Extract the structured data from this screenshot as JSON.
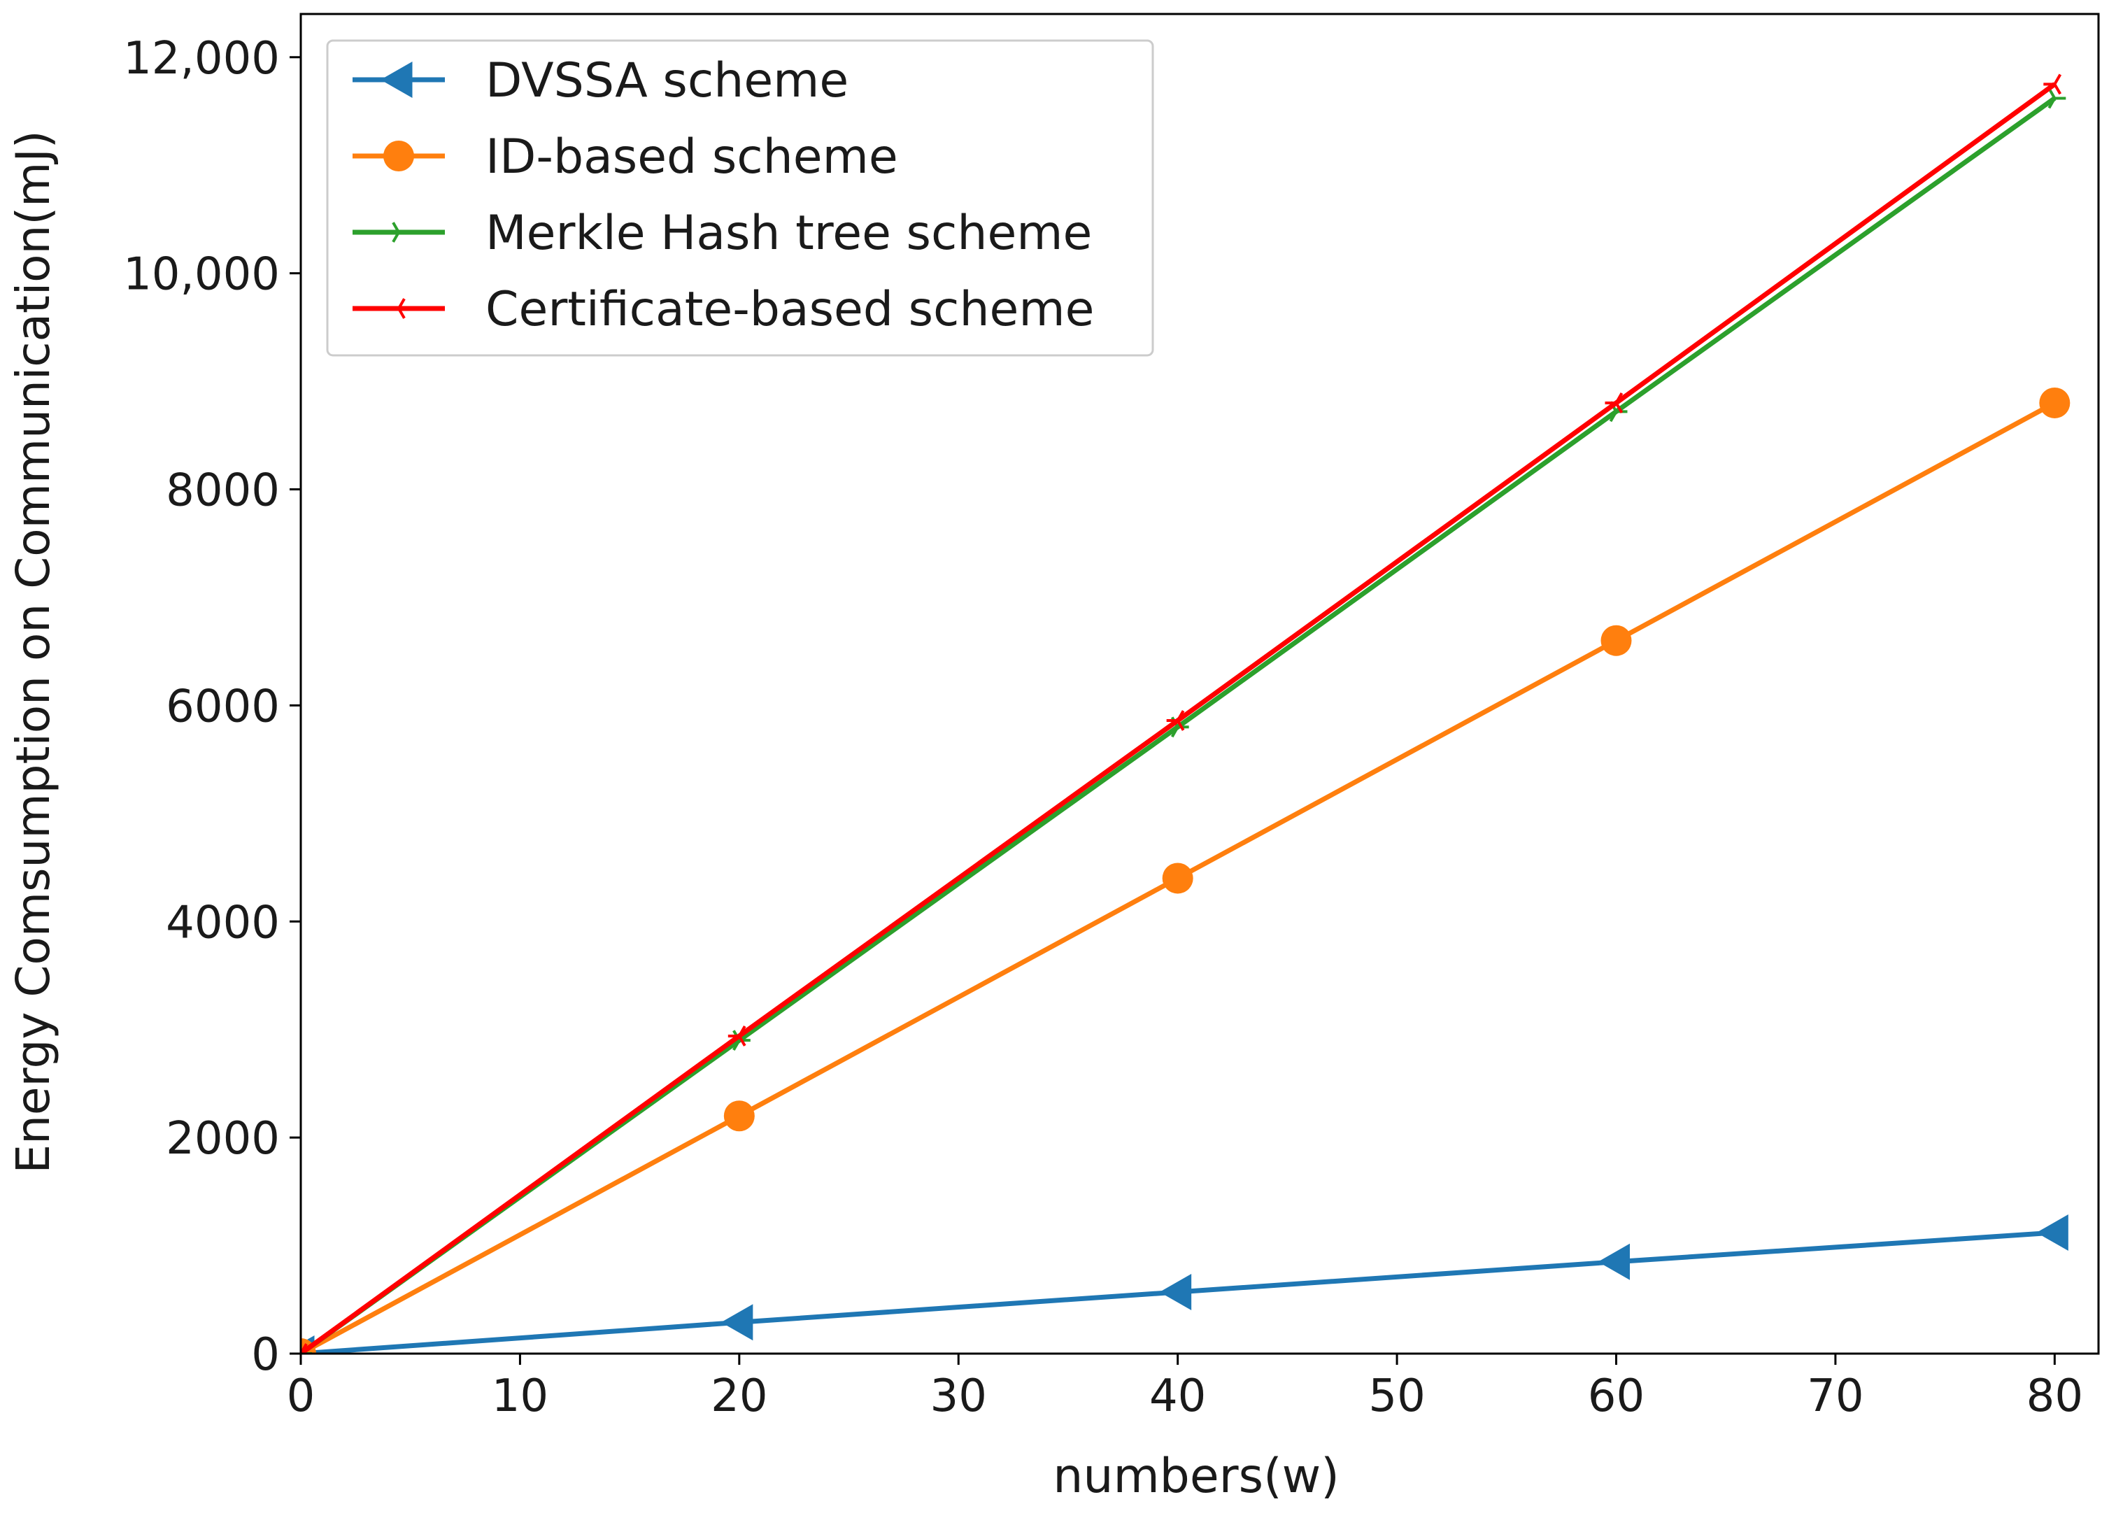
{
  "chart_data": {
    "type": "line",
    "title": "",
    "xlabel": "numbers(w)",
    "ylabel": "Energy Comsumption on Communication(mJ)",
    "xlim": [
      0,
      82
    ],
    "ylim": [
      0,
      12400
    ],
    "xticks": [
      0,
      10,
      20,
      30,
      40,
      50,
      60,
      70,
      80
    ],
    "xtick_labels": [
      "0",
      "10",
      "20",
      "30",
      "40",
      "50",
      "60",
      "70",
      "80"
    ],
    "yticks": [
      0,
      2000,
      4000,
      6000,
      8000,
      10000,
      12000
    ],
    "ytick_labels": [
      "0",
      "2000",
      "4000",
      "6000",
      "8000",
      "10,000",
      "12,000"
    ],
    "grid": false,
    "legend_position": "top-left",
    "x": [
      0,
      20,
      40,
      60,
      80
    ],
    "series": [
      {
        "name": "DVSSA scheme",
        "color": "#1f77b4",
        "marker": "triangle-left",
        "values": [
          0,
          290,
          570,
          850,
          1120
        ]
      },
      {
        "name": "ID-based scheme",
        "color": "#ff7f0e",
        "marker": "circle",
        "values": [
          0,
          2200,
          4400,
          6600,
          8800
        ]
      },
      {
        "name": "Merkle Hash tree scheme",
        "color": "#2ca02c",
        "marker": "tri-right",
        "values": [
          0,
          2900,
          5800,
          8720,
          11620
        ]
      },
      {
        "name": "Certificate-based scheme",
        "color": "#ff0000",
        "marker": "tri-left",
        "values": [
          0,
          2940,
          5860,
          8800,
          11750
        ]
      }
    ]
  }
}
